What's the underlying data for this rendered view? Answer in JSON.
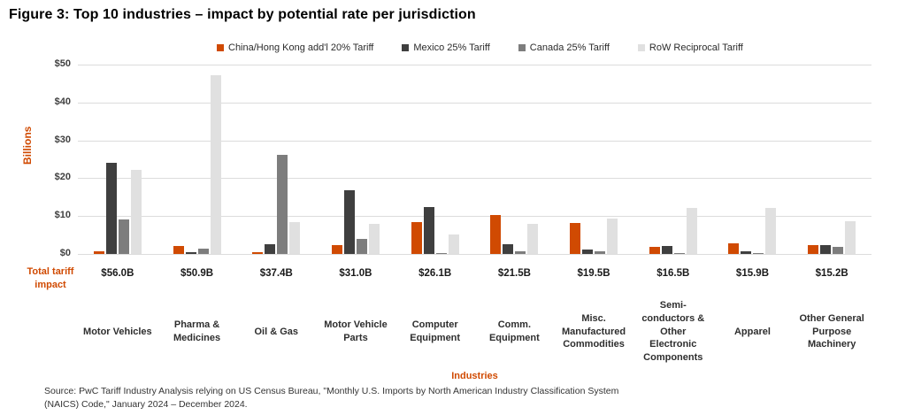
{
  "title": "Figure 3: Top 10 industries – impact by potential rate per jurisdiction",
  "source_line1": "Source: PwC Tariff Industry Analysis relying on US Census Bureau, \"Monthly U.S. Imports by North American Industry Classification System",
  "source_line2": "(NAICS) Code,\" January 2024 – December 2024.",
  "colors": {
    "china_orange": "#D04A02",
    "mexico_dark_gray": "#3F3F3F",
    "canada_gray": "#7D7D7D",
    "row_light_gray": "#E0E0E0",
    "gridline": "#DCDCDC"
  },
  "chart_data": {
    "type": "bar",
    "title": "Figure 3: Top 10 industries – impact by potential rate per jurisdiction",
    "xlabel": "Industries",
    "ylabel": "Billions",
    "ylim": [
      0,
      50
    ],
    "yticks": [
      "$0",
      "$10",
      "$20",
      "$30",
      "$40",
      "$50"
    ],
    "grid": true,
    "legend_position": "top",
    "categories": [
      "Motor Vehicles",
      "Pharma & Medicines",
      "Oil & Gas",
      "Motor Vehicle Parts",
      "Computer Equipment",
      "Comm. Equipment",
      "Misc. Manufactured Commodities",
      "Semi-conductors & Other Electronic Components",
      "Apparel",
      "Other General Purpose Machinery"
    ],
    "series": [
      {
        "name": "China/Hong Kong add'l 20% Tariff",
        "color": "#D04A02",
        "values": [
          0.7,
          2.0,
          0.4,
          2.4,
          8.3,
          10.4,
          8.2,
          1.8,
          2.9,
          2.3
        ]
      },
      {
        "name": "Mexico 25% Tariff",
        "color": "#3F3F3F",
        "values": [
          24.0,
          0.4,
          2.5,
          16.8,
          12.3,
          2.6,
          1.2,
          2.2,
          0.6,
          2.4
        ]
      },
      {
        "name": "Canada 25% Tariff",
        "color": "#7D7D7D",
        "values": [
          9.0,
          1.3,
          26.2,
          3.9,
          0.3,
          0.6,
          0.7,
          0.3,
          0.2,
          1.8
        ]
      },
      {
        "name": "RoW Reciprocal Tariff",
        "color": "#E0E0E0",
        "values": [
          22.3,
          47.2,
          8.3,
          7.9,
          5.2,
          7.9,
          9.4,
          12.2,
          12.2,
          8.7
        ]
      }
    ],
    "totals_label": "Total tariff impact",
    "totals": [
      "$56.0B",
      "$50.9B",
      "$37.4B",
      "$31.0B",
      "$26.1B",
      "$21.5B",
      "$19.5B",
      "$16.5B",
      "$15.9B",
      "$15.2B"
    ]
  }
}
